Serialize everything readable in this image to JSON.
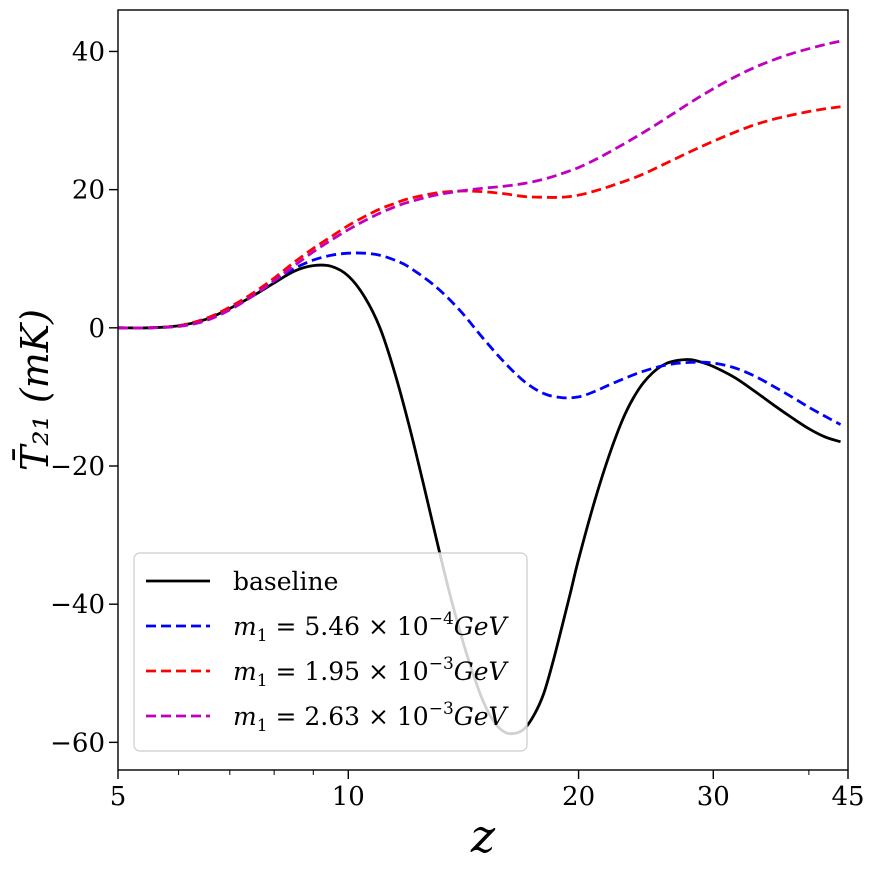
{
  "chart_data": {
    "type": "line",
    "x_scale": "log",
    "xlabel": "z",
    "ylabel": "T̄₂₁ (mK)",
    "xlim": [
      5,
      45
    ],
    "ylim": [
      -64,
      46
    ],
    "x_ticks": [
      5,
      10,
      20,
      30,
      45
    ],
    "x_tick_labels": [
      "5",
      "10",
      "20",
      "30",
      "45"
    ],
    "y_ticks": [
      -60,
      -40,
      -20,
      0,
      20,
      40
    ],
    "y_tick_labels": [
      "−60",
      "−40",
      "−20",
      "0",
      "20",
      "40"
    ],
    "legend_position": "lower-left",
    "series": [
      {
        "name": "baseline",
        "color": "#000000",
        "dash": "solid",
        "x": [
          5,
          5.5,
          6,
          6.5,
          7,
          7.5,
          8,
          8.5,
          9,
          9.5,
          10,
          10.5,
          11,
          11.5,
          12,
          12.5,
          13,
          13.5,
          14,
          14.5,
          15,
          15.5,
          16,
          16.5,
          17,
          17.5,
          18,
          18.5,
          19,
          19.5,
          20,
          21,
          22,
          23,
          24,
          25,
          26,
          27,
          28,
          29,
          30,
          32,
          34,
          36,
          38,
          40,
          42,
          44
        ],
        "y": [
          0,
          0,
          0.3,
          1.2,
          2.8,
          4.6,
          6.5,
          8.2,
          9.0,
          8.9,
          7.5,
          4.5,
          0,
          -6.5,
          -14,
          -22,
          -30,
          -37.5,
          -44,
          -49.5,
          -54,
          -57,
          -58.5,
          -58.7,
          -58,
          -56,
          -53,
          -48.5,
          -43.5,
          -38.5,
          -33.5,
          -25,
          -18,
          -12.5,
          -8.8,
          -6.5,
          -5.2,
          -4.7,
          -4.6,
          -5.0,
          -5.6,
          -7.2,
          -9.2,
          -11.2,
          -13.0,
          -14.6,
          -15.8,
          -16.5
        ]
      },
      {
        "name": "m₁ = 5.46 × 10⁻⁴ GeV",
        "color": "#0000ff",
        "dash": "dashed",
        "x": [
          5,
          5.5,
          6,
          6.5,
          7,
          7.5,
          8,
          8.5,
          9,
          9.5,
          10,
          10.5,
          11,
          11.5,
          12,
          13,
          14,
          15,
          16,
          17,
          18,
          19,
          20,
          21,
          22,
          24,
          26,
          28,
          30,
          32,
          34,
          36,
          38,
          40,
          42,
          44
        ],
        "y": [
          0,
          0,
          0.3,
          1.3,
          2.9,
          4.8,
          6.8,
          8.6,
          9.8,
          10.5,
          10.8,
          10.8,
          10.5,
          9.8,
          8.8,
          6.0,
          2.5,
          -1.5,
          -5.0,
          -7.8,
          -9.5,
          -10.1,
          -10.0,
          -9.2,
          -8.2,
          -6.5,
          -5.4,
          -5.0,
          -5.1,
          -5.8,
          -7.0,
          -8.5,
          -10.0,
          -11.5,
          -12.8,
          -14.0
        ]
      },
      {
        "name": "m₁ = 1.95 × 10⁻³ GeV",
        "color": "#ff0000",
        "dash": "dashed",
        "x": [
          5,
          5.5,
          6,
          6.5,
          7,
          7.5,
          8,
          8.5,
          9,
          9.5,
          10,
          10.5,
          11,
          11.5,
          12,
          13,
          14,
          15,
          16,
          17,
          18,
          19,
          20,
          21,
          22,
          24,
          26,
          28,
          30,
          32,
          34,
          36,
          38,
          40,
          42,
          44
        ],
        "y": [
          0,
          0,
          0.3,
          1.3,
          3.0,
          5.0,
          7.2,
          9.5,
          11.5,
          13.2,
          14.8,
          16.1,
          17.2,
          18.0,
          18.7,
          19.5,
          19.8,
          19.7,
          19.4,
          19.0,
          18.9,
          18.9,
          19.2,
          19.8,
          20.5,
          22.0,
          23.8,
          25.5,
          27.0,
          28.3,
          29.4,
          30.2,
          30.8,
          31.3,
          31.7,
          32.0
        ]
      },
      {
        "name": "m₁ = 2.63 × 10⁻³ GeV",
        "color": "#bf00bf",
        "dash": "dashed",
        "x": [
          5,
          5.5,
          6,
          6.5,
          7,
          7.5,
          8,
          8.5,
          9,
          9.5,
          10,
          10.5,
          11,
          11.5,
          12,
          13,
          14,
          15,
          16,
          17,
          18,
          19,
          20,
          21,
          22,
          24,
          26,
          28,
          30,
          32,
          34,
          36,
          38,
          40,
          42,
          44
        ],
        "y": [
          0,
          0,
          0.2,
          1.0,
          2.6,
          4.6,
          6.8,
          9.0,
          11.0,
          12.7,
          14.2,
          15.5,
          16.6,
          17.5,
          18.2,
          19.2,
          19.8,
          20.2,
          20.5,
          20.9,
          21.5,
          22.3,
          23.2,
          24.3,
          25.5,
          27.9,
          30.3,
          32.6,
          34.6,
          36.3,
          37.7,
          38.8,
          39.7,
          40.4,
          41.0,
          41.5
        ]
      }
    ],
    "legend": [
      {
        "base": "baseline"
      },
      {
        "base": "5.46",
        "exp": "−4"
      },
      {
        "base": "1.95",
        "exp": "−3"
      },
      {
        "base": "2.63",
        "exp": "−3"
      }
    ],
    "legend_math": {
      "prefix": "m",
      "sub": "1",
      "eq": " = ",
      "times": " × 10",
      "unit": "GeV"
    }
  }
}
